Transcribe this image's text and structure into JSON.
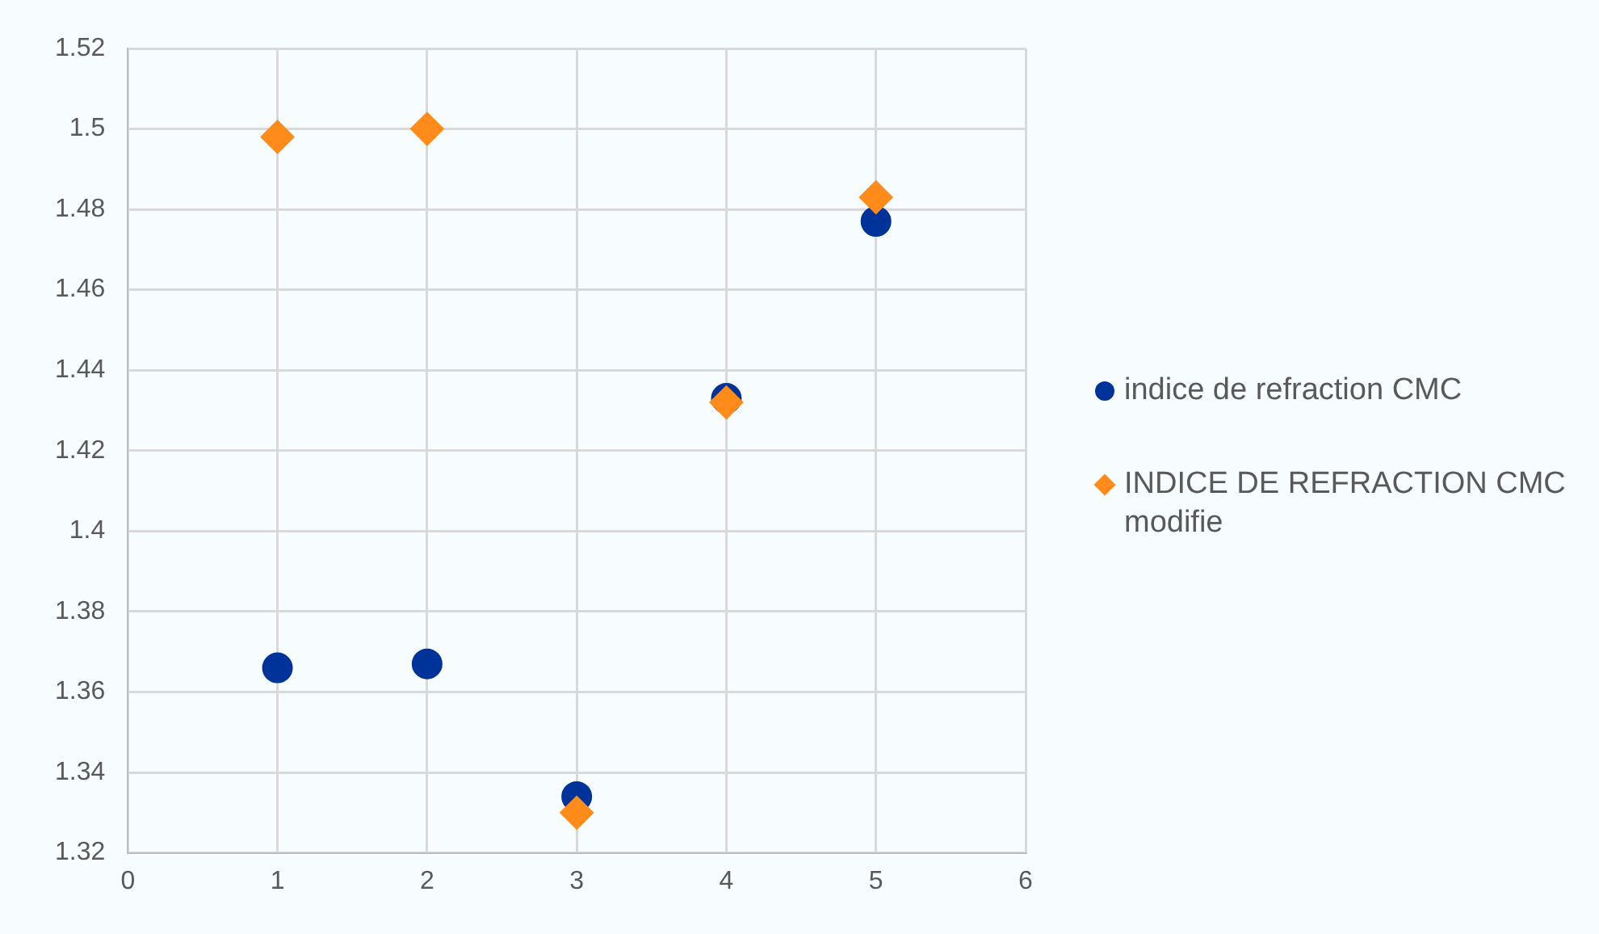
{
  "chart_data": {
    "type": "scatter",
    "x": [
      1,
      2,
      3,
      4,
      5
    ],
    "series": [
      {
        "name": "indice de refraction CMC",
        "color": "#003399",
        "marker": "circle",
        "values": [
          1.366,
          1.367,
          1.334,
          1.433,
          1.477
        ]
      },
      {
        "name": "INDICE DE REFRACTION CMC modifie",
        "color": "#ff8c1a",
        "marker": "diamond",
        "values": [
          1.498,
          1.5,
          1.33,
          1.432,
          1.483
        ]
      }
    ],
    "xlim": [
      0,
      6
    ],
    "xticks": [
      0,
      1,
      2,
      3,
      4,
      5,
      6
    ],
    "ylim": [
      1.32,
      1.52
    ],
    "yticks": [
      1.32,
      1.34,
      1.36,
      1.38,
      1.4,
      1.42,
      1.44,
      1.46,
      1.48,
      1.5,
      1.52
    ],
    "grid": true,
    "legend": "right"
  }
}
